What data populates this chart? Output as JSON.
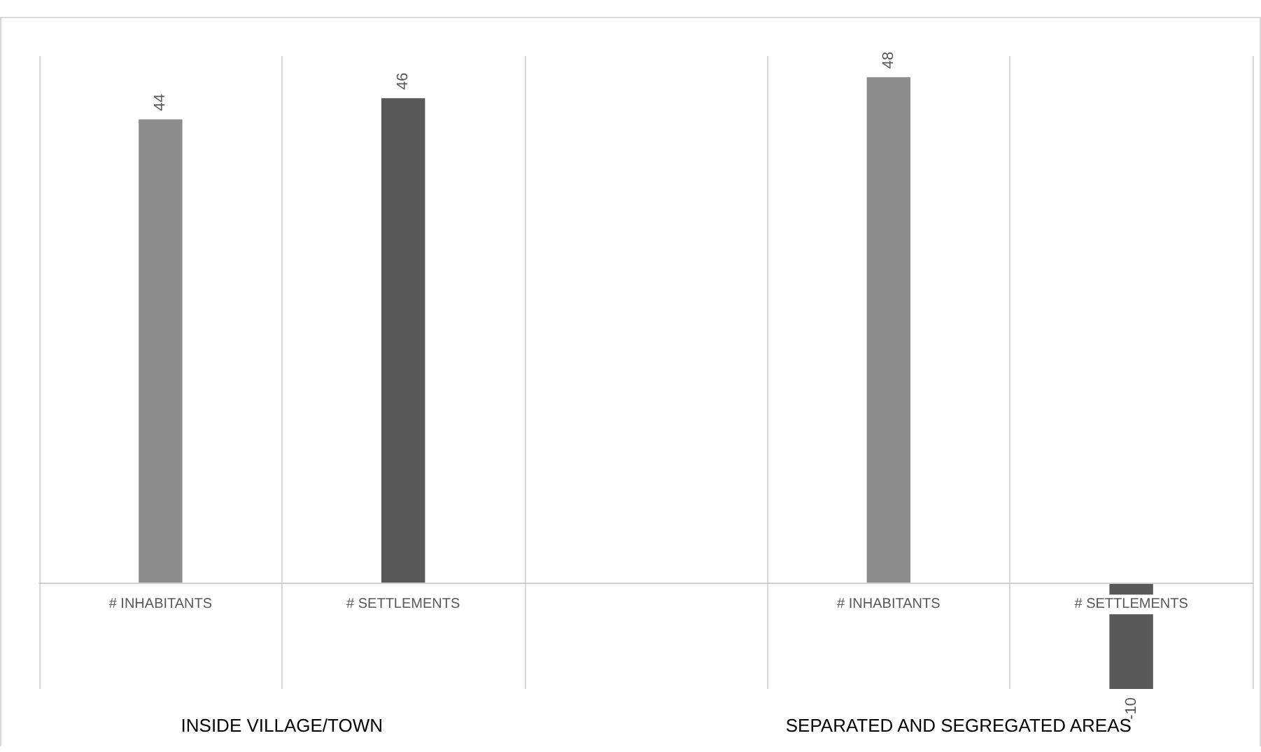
{
  "chart_data": {
    "type": "bar",
    "categories": [
      "# INHABITANTS",
      "# SETTLEMENTS",
      null,
      "# INHABITANTS",
      "# SETTLEMENTS"
    ],
    "values": [
      44,
      46,
      null,
      48,
      -10
    ],
    "colors": [
      "#8c8c8c",
      "#595959",
      "#595959",
      "#8c8c8c",
      "#595959"
    ],
    "data_labels": true,
    "tick_labels": "x",
    "grid": "x",
    "annotations": [
      "INSIDE VILLAGE/TOWN",
      "SEPARATED AND SEGREGATED AREAS"
    ]
  }
}
